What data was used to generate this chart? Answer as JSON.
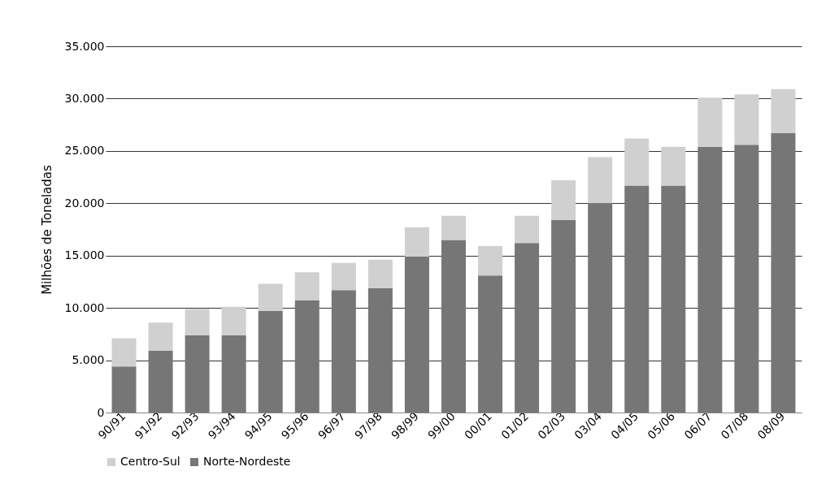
{
  "chart_data": {
    "type": "bar",
    "stacked": true,
    "ylabel": "Milhões de Toneladas",
    "categories": [
      "90/91",
      "91/92",
      "92/93",
      "93/94",
      "94/95",
      "95/96",
      "96/97",
      "97/98",
      "98/99",
      "99/00",
      "00/01",
      "01/02",
      "02/03",
      "03/04",
      "04/05",
      "05/06",
      "06/07",
      "07/08",
      "08/09"
    ],
    "series": [
      {
        "name": "Norte-Nordeste",
        "color": "#767676",
        "values": [
          4400,
          5900,
          7400,
          7400,
          9700,
          10700,
          11700,
          11900,
          14900,
          16500,
          13100,
          16200,
          18400,
          20000,
          21700,
          21700,
          25400,
          25600,
          26700
        ]
      },
      {
        "name": "Centro-Sul",
        "color": "#d0d0d0",
        "values": [
          2700,
          2700,
          2500,
          2700,
          2600,
          2700,
          2600,
          2700,
          2800,
          2300,
          2800,
          2600,
          3800,
          4400,
          4500,
          3700,
          4700,
          4800,
          4200
        ]
      }
    ],
    "ylim": [
      0,
      35000
    ],
    "yticks": [
      {
        "value": 0,
        "label": "0"
      },
      {
        "value": 5000,
        "label": "5.000"
      },
      {
        "value": 10000,
        "label": "10.000"
      },
      {
        "value": 15000,
        "label": "15.000"
      },
      {
        "value": 20000,
        "label": "20.000"
      },
      {
        "value": 25000,
        "label": "25.000"
      },
      {
        "value": 30000,
        "label": "30.000"
      },
      {
        "value": 35000,
        "label": "35.000"
      }
    ],
    "grid": "y",
    "legend": "bottom"
  }
}
